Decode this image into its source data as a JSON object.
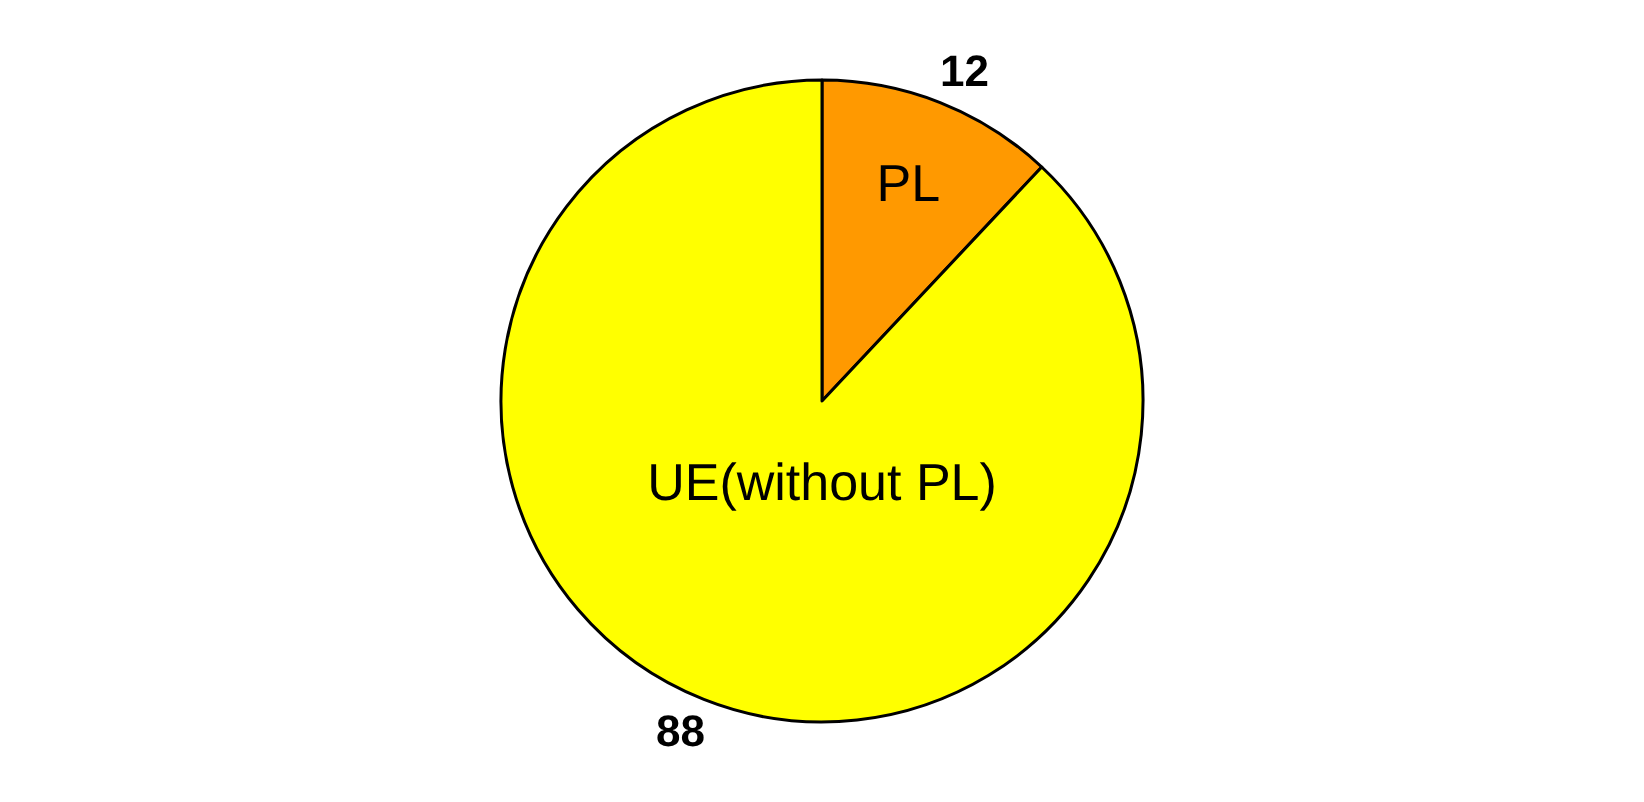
{
  "chart_data": {
    "type": "pie",
    "categories": [
      "PL",
      "UE(without PL)"
    ],
    "values": [
      12,
      88
    ],
    "colors": [
      "#ff9900",
      "#ffff00"
    ],
    "data_labels": true,
    "legend": false
  }
}
